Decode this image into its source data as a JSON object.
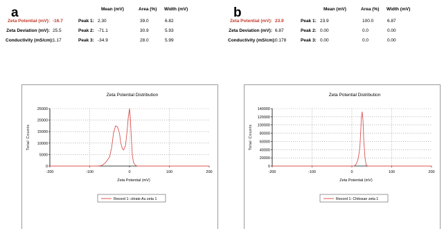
{
  "panels": [
    {
      "letter": "a",
      "stats": {
        "headers": [
          "Mean (mV)",
          "Area (%)",
          "Width (mV)"
        ],
        "left_rows": [
          {
            "label": "Zeta Potential (mV):",
            "value": "-16.7",
            "highlight": true
          },
          {
            "label": "Zeta Deviation (mV):",
            "value": "25.5",
            "highlight": false
          },
          {
            "label": "Conductivity (mS/cm):",
            "value": "1.17",
            "highlight": false
          }
        ],
        "peaks": [
          {
            "label": "Peak 1:",
            "mean": "2.30",
            "area": "39.0",
            "width": "6.82"
          },
          {
            "label": "Peak 2:",
            "mean": "-71.1",
            "area": "30.9",
            "width": "5.93"
          },
          {
            "label": "Peak 3:",
            "mean": "-34.9",
            "area": "28.0",
            "width": "5.99"
          }
        ]
      },
      "legend_entry": "Record 1: citrate Au zeta 1"
    },
    {
      "letter": "b",
      "stats": {
        "headers": [
          "Mean (mV)",
          "Area (%)",
          "Width (mV)"
        ],
        "left_rows": [
          {
            "label": "Zeta Potential (mV):",
            "value": "23.9",
            "highlight": true
          },
          {
            "label": "Zeta Deviation (mV):",
            "value": "6.87",
            "highlight": false
          },
          {
            "label": "Conductivity (mS/cm):",
            "value": "0.178",
            "highlight": false
          }
        ],
        "peaks": [
          {
            "label": "Peak 1:",
            "mean": "23.9",
            "area": "100.0",
            "width": "6.87"
          },
          {
            "label": "Peak 2:",
            "mean": "0.00",
            "area": "0.0",
            "width": "0.00"
          },
          {
            "label": "Peak 3:",
            "mean": "0.00",
            "area": "0.0",
            "width": "0.00"
          }
        ]
      },
      "legend_entry": "Record 1: Chitosan zeta 1"
    }
  ],
  "colors": {
    "line": "#d9534f",
    "grid": "#9a9a9a",
    "highlight": "#c0392b"
  },
  "chart_data": [
    {
      "type": "line",
      "title": "Zeta Potential Distribution",
      "xlabel": "Zeta Potential (mV)",
      "ylabel": "Total Counts",
      "xlim": [
        -200,
        200
      ],
      "ylim": [
        0,
        25000
      ],
      "xticks": [
        -200,
        -100,
        0,
        100,
        200
      ],
      "yticks": [
        0,
        5000,
        10000,
        15000,
        20000,
        25000
      ],
      "grid": true,
      "legend_position": "bottom-center",
      "series": [
        {
          "name": "Record 1: citrate Au zeta 1",
          "x": [
            -200,
            -80,
            -70,
            -60,
            -50,
            -45,
            -40,
            -35,
            -30,
            -25,
            -22,
            -18,
            -15,
            -10,
            -6,
            -3,
            0,
            2,
            4,
            7,
            10,
            15,
            20,
            30,
            60,
            80,
            200
          ],
          "y": [
            0,
            0,
            200,
            1500,
            4000,
            8000,
            14500,
            17500,
            17000,
            14000,
            10000,
            7500,
            7000,
            9000,
            15500,
            21500,
            25000,
            21000,
            14000,
            5000,
            1500,
            300,
            0,
            0,
            0,
            0,
            0
          ]
        }
      ]
    },
    {
      "type": "line",
      "title": "Zeta Potential Distribution",
      "xlabel": "Zeta Potential (mV)",
      "ylabel": "Total Counts",
      "xlim": [
        -200,
        200
      ],
      "ylim": [
        0,
        140000
      ],
      "xticks": [
        -200,
        -100,
        0,
        100,
        200
      ],
      "yticks": [
        0,
        20000,
        40000,
        60000,
        80000,
        100000,
        120000,
        140000
      ],
      "grid": true,
      "legend_position": "bottom-center",
      "series": [
        {
          "name": "Record 1: Chitosan zeta 1",
          "x": [
            -200,
            0,
            5,
            10,
            15,
            18,
            20,
            22,
            24,
            26,
            28,
            30,
            33,
            36,
            40,
            200
          ],
          "y": [
            0,
            0,
            0,
            3000,
            15000,
            30000,
            45000,
            80000,
            120000,
            132000,
            110000,
            60000,
            20000,
            2000,
            0,
            0
          ]
        }
      ]
    }
  ]
}
